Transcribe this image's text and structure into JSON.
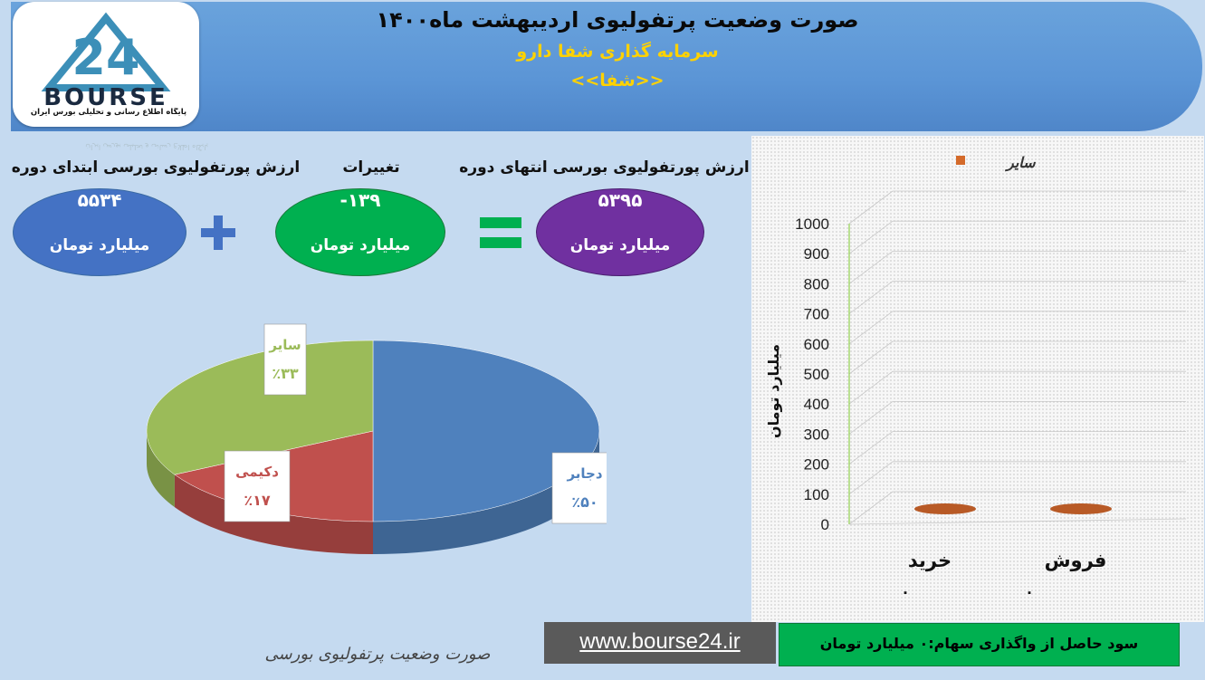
{
  "header": {
    "title": "صورت وضعیت پرتفولیوی اردیبهشت ماه۱۴۰۰",
    "company": "سرمایه گذاری شفا دارو",
    "symbol": "<<شفا>>",
    "logo_text": "BOURSE",
    "logo_number": "24",
    "logo_tagline": "پایگاه اطلاع رسانی و تحلیلی بورس ایران"
  },
  "summary": {
    "start": {
      "label": "ارزش پورتفولیوی بورسی ابتدای دوره",
      "value": "۵۵۳۴",
      "unit": "میلیارد تومان"
    },
    "change": {
      "label": "تغییرات",
      "value": "-۱۳۹",
      "unit": "میلیارد تومان"
    },
    "end": {
      "label": "ارزش پورتفولیوی بورسی انتهای دوره",
      "value": "۵۳۹۵",
      "unit": "میلیارد تومان"
    }
  },
  "colors": {
    "blue": "#4f81bd",
    "red": "#c0504d",
    "green": "#9bbb59",
    "orange": "#d46a2a",
    "purple": "#7030a0",
    "ellipse_green": "#00b050",
    "ellipse_blue": "#4472c4"
  },
  "chart_data": [
    {
      "type": "pie",
      "slices": [
        {
          "name": "دجابر",
          "percent_label": "٪۵۰",
          "value": 50,
          "color": "#4f81bd"
        },
        {
          "name": "دکیمی",
          "percent_label": "٪۱۷",
          "value": 17,
          "color": "#c0504d"
        },
        {
          "name": "سایر",
          "percent_label": "٪۳۳",
          "value": 33,
          "color": "#9bbb59"
        }
      ]
    },
    {
      "type": "bar",
      "legend": [
        {
          "name": "سایر",
          "color": "#d46a2a"
        }
      ],
      "legend_position": "top-right",
      "categories": [
        "خرید",
        "فروش"
      ],
      "series": [
        {
          "name": "سایر",
          "values": [
            0,
            0
          ]
        }
      ],
      "category_values_text": [
        "۰",
        "۰"
      ],
      "ylabel": "میلیارد تومان",
      "ylim": [
        0,
        1000
      ],
      "yticks": [
        "0",
        "100",
        "200",
        "300",
        "400",
        "500",
        "600",
        "700",
        "800",
        "900",
        "1000"
      ],
      "grid": true
    }
  ],
  "footer": {
    "profit_text": "سود حاصل از واگذاری سهام:۰ میلیارد تومان",
    "website": "www.bourse24.ir",
    "caption": "صورت وضعیت پرتفولیوی بورسی"
  }
}
